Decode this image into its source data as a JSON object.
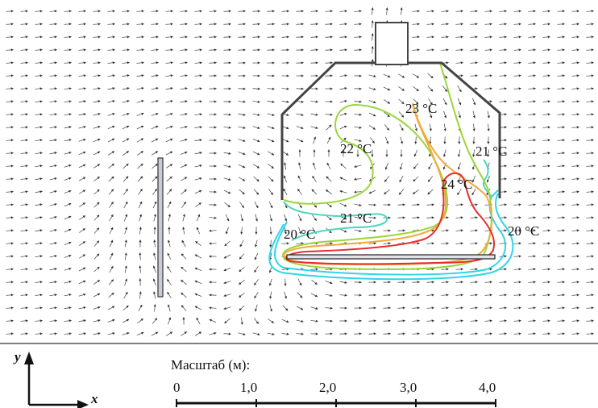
{
  "temperature_labels": [
    {
      "id": "t23",
      "text": "23 °C"
    },
    {
      "id": "t22",
      "text": "22 °C"
    },
    {
      "id": "t21a",
      "text": "21 °C"
    },
    {
      "id": "t24",
      "text": "24 °C"
    },
    {
      "id": "t21b",
      "text": "21 °C"
    },
    {
      "id": "t20a",
      "text": "20 °C"
    },
    {
      "id": "t20b",
      "text": "20 °C"
    }
  ],
  "isotherm_colors": {
    "c20": "#2fd6e6",
    "c21": "#4ad8c0",
    "c22": "#9ad63a",
    "c23": "#f2a93b",
    "c24": "#e62e2e"
  },
  "axes": {
    "y": "y",
    "x": "x"
  },
  "scale": {
    "title": "Масштаб (м):",
    "ticks": [
      "0",
      "1,0",
      "2,0",
      "3,0",
      "4,0"
    ]
  }
}
